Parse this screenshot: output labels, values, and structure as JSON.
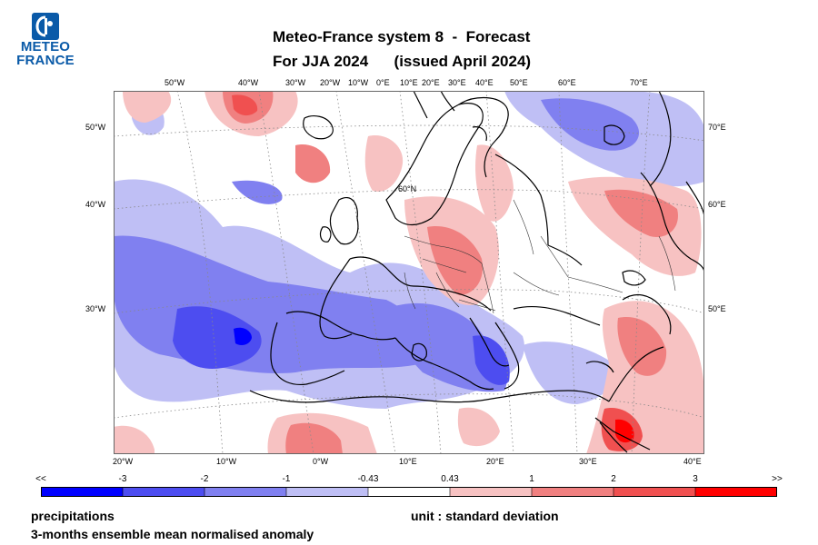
{
  "logo": {
    "line1": "METEO",
    "line2": "FRANCE"
  },
  "header": {
    "title_line1": "Meteo-France system 8  -  Forecast",
    "title_line2": "For JJA 2024      (issued April 2024)"
  },
  "map": {
    "top_lon_labels": [
      "50°W",
      "40°W",
      "30°W",
      "20°W",
      "10°W",
      "0°E",
      "10°E",
      "20°E",
      "30°E",
      "40°E",
      "50°E",
      "60°E",
      "70°E"
    ],
    "left_lat_labels": [
      "50°W",
      "40°W",
      "30°W"
    ],
    "right_lat_labels": [
      "70°E",
      "60°E",
      "50°E"
    ],
    "bottom_lon_labels": [
      "20°W",
      "10°W",
      "0°W",
      "10°E",
      "20°E",
      "30°E",
      "40°E"
    ],
    "inner_labels": [
      "60°N"
    ],
    "colors": {
      "minus_gt3": "#0000ff",
      "minus_2_3": "#4d4df0",
      "minus_1_2": "#8080f0",
      "minus_043_1": "#bfbff5",
      "neutral": "#ffffff",
      "plus_043_1": "#f7c2c2",
      "plus_1_2": "#f08080",
      "plus_2_3": "#f05050",
      "plus_gt3": "#ff0000",
      "coastline": "#000000",
      "grid": "#888888"
    }
  },
  "legend": {
    "tick_labels": [
      "<<",
      "-3",
      "-2",
      "-1",
      "-0.43",
      "0.43",
      "1",
      "2",
      "3",
      ">>"
    ],
    "colors": [
      "#0000ff",
      "#4d4df0",
      "#8080f0",
      "#bfbff5",
      "#ffffff",
      "#f7c2c2",
      "#f08080",
      "#f05050",
      "#ff0000"
    ]
  },
  "footer": {
    "variable": "precipitations",
    "description": "3-months ensemble mean normalised anomaly",
    "unit": "unit : standard deviation"
  }
}
